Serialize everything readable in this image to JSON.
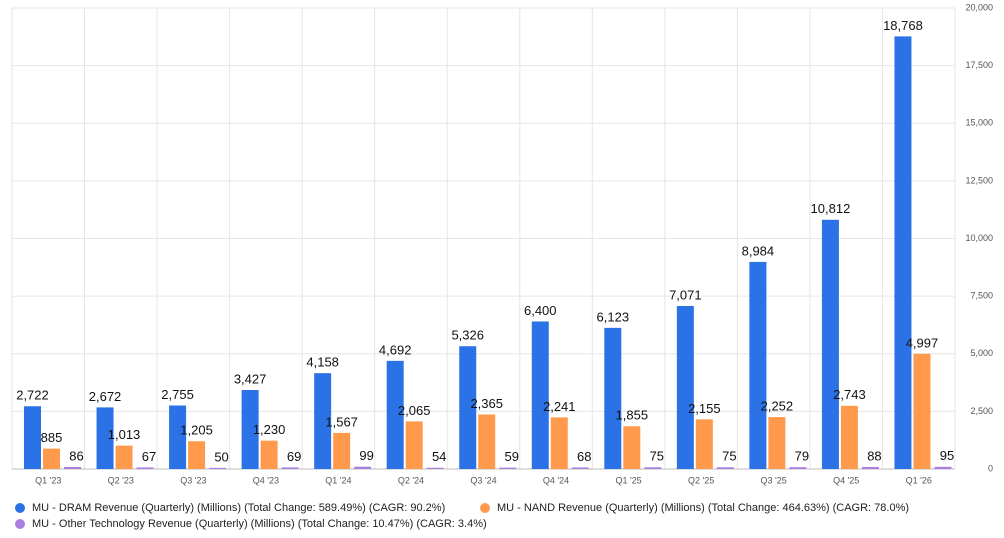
{
  "chart_data": {
    "type": "bar",
    "categories": [
      "Q1 '23",
      "Q2 '23",
      "Q3 '23",
      "Q4 '23",
      "Q1 '24",
      "Q2 '24",
      "Q3 '24",
      "Q4 '24",
      "Q1 '25",
      "Q2 '25",
      "Q3 '25",
      "Q4 '25",
      "Q1 '26"
    ],
    "series": [
      {
        "name": "MU - DRAM Revenue (Quarterly) (Millions) (Total Change: 589.49%) (CAGR: 90.2%)",
        "color": "#2b72e6",
        "values": [
          2722,
          2672,
          2755,
          3427,
          4158,
          4692,
          5326,
          6400,
          6123,
          7071,
          8984,
          10812,
          18768
        ],
        "value_labels": [
          "2,722",
          "2,672",
          "2,755",
          "3,427",
          "4,158",
          "4,692",
          "5,326",
          "6,400",
          "6,123",
          "7,071",
          "8,984",
          "10,812",
          "18,768"
        ]
      },
      {
        "name": "MU - NAND Revenue (Quarterly) (Millions) (Total Change: 464.63%) (CAGR: 78.0%)",
        "color": "#ff9a4d",
        "values": [
          885,
          1013,
          1205,
          1230,
          1567,
          2065,
          2365,
          2241,
          1855,
          2155,
          2252,
          2743,
          4997
        ],
        "value_labels": [
          "885",
          "1,013",
          "1,205",
          "1,230",
          "1,567",
          "2,065",
          "2,365",
          "2,241",
          "1,855",
          "2,155",
          "2,252",
          "2,743",
          "4,997"
        ]
      },
      {
        "name": "MU - Other Technology Revenue (Quarterly) (Millions) (Total Change: 10.47%) (CAGR: 3.4%)",
        "color": "#a97fe0",
        "values": [
          86,
          67,
          50,
          69,
          99,
          54,
          59,
          68,
          75,
          75,
          79,
          88,
          95
        ]
      }
    ],
    "ylim": [
      0,
      20000
    ],
    "yticks": [
      0,
      {
        "value": 2500,
        "label": "2,500"
      },
      {
        "value": 5000,
        "label": "5,000"
      },
      {
        "value": 7500,
        "label": "7,500"
      },
      {
        "value": 10000,
        "label": "10,000"
      },
      {
        "value": 12500,
        "label": "12,500"
      },
      {
        "value": 15000,
        "label": "15,000"
      },
      {
        "value": 17500,
        "label": "17,500"
      },
      {
        "value": 20000,
        "label": "20,000"
      }
    ],
    "grid": true,
    "legend": "bottom"
  }
}
